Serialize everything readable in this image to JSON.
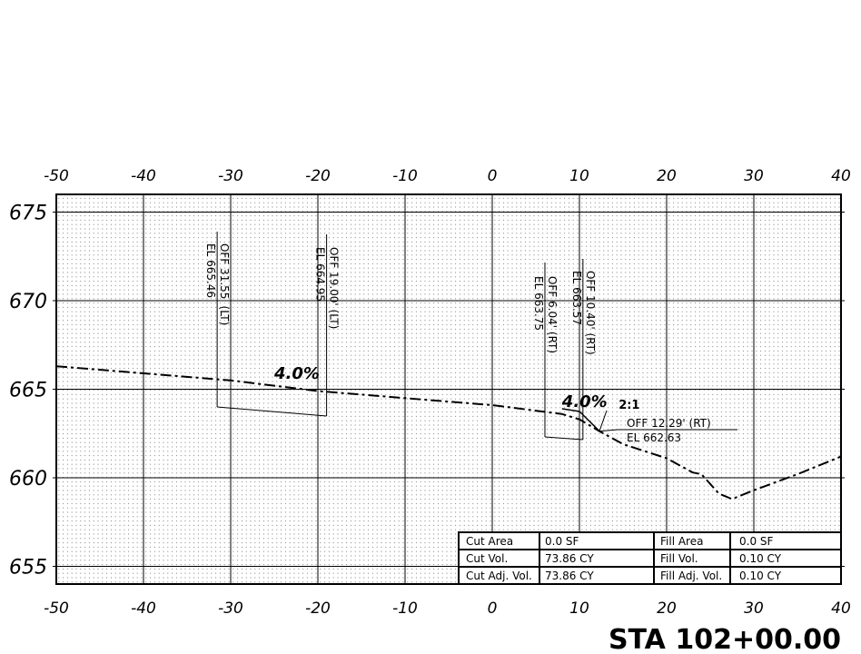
{
  "station": "STA 102+00.00",
  "axes": {
    "x_ticks": [
      "-50",
      "-40",
      "-30",
      "-20",
      "-10",
      "0",
      "10",
      "20",
      "30",
      "40"
    ],
    "y_ticks": [
      "655",
      "660",
      "665",
      "670",
      "675"
    ],
    "x_range": [
      -50,
      40
    ],
    "y_range": [
      654,
      676
    ]
  },
  "profile": {
    "ground": [
      [
        -50,
        666.3
      ],
      [
        -30,
        665.5
      ],
      [
        -20,
        664.9
      ],
      [
        -10,
        664.5
      ],
      [
        0,
        664.1
      ],
      [
        8,
        663.6
      ],
      [
        10,
        663.3
      ],
      [
        12.29,
        662.63
      ],
      [
        15,
        661.9
      ],
      [
        20,
        661.1
      ],
      [
        23,
        660.3
      ],
      [
        24,
        660.2
      ],
      [
        26,
        659.1
      ],
      [
        27.5,
        658.8
      ],
      [
        30,
        659.3
      ],
      [
        35,
        660.2
      ],
      [
        40,
        661.2
      ]
    ],
    "slope_line": [
      [
        8,
        663.9
      ],
      [
        10,
        663.75
      ],
      [
        12.29,
        662.63
      ]
    ],
    "grade_labels": [
      {
        "text": "4.0%",
        "x": -25,
        "y": 665.6
      },
      {
        "text": "4.0%",
        "x": 8,
        "y": 664.0
      }
    ],
    "side_slope_label": {
      "text": "2:1",
      "x": 14.5,
      "y": 663.9
    }
  },
  "offset_labels": [
    {
      "offset": "OFF 31.55' (LT)",
      "elev": "EL 665.46",
      "x": -31.55
    },
    {
      "offset": "OFF 19.00' (LT)",
      "elev": "EL 664.95",
      "x": -19.0
    },
    {
      "offset": "OFF 6.04' (RT)",
      "elev": "EL 663.75",
      "x": 6.04
    },
    {
      "offset": "OFF 10.40' (RT)",
      "elev": "EL 663.57",
      "x": 10.4
    },
    {
      "offset": "OFF 12.29' (RT)",
      "elev": "EL 662.63",
      "x": 12.29
    }
  ],
  "quantities": {
    "rows": [
      {
        "cut_label": "Cut Area",
        "cut_value": "0.0 SF",
        "fill_label": "Fill Area",
        "fill_value": "0.0 SF"
      },
      {
        "cut_label": "Cut Vol.",
        "cut_value": "73.86 CY",
        "fill_label": "Fill Vol.",
        "fill_value": "0.10 CY"
      },
      {
        "cut_label": "Cut Adj. Vol.",
        "cut_value": "73.86 CY",
        "fill_label": "Fill Adj. Vol.",
        "fill_value": "0.10 CY"
      }
    ]
  }
}
